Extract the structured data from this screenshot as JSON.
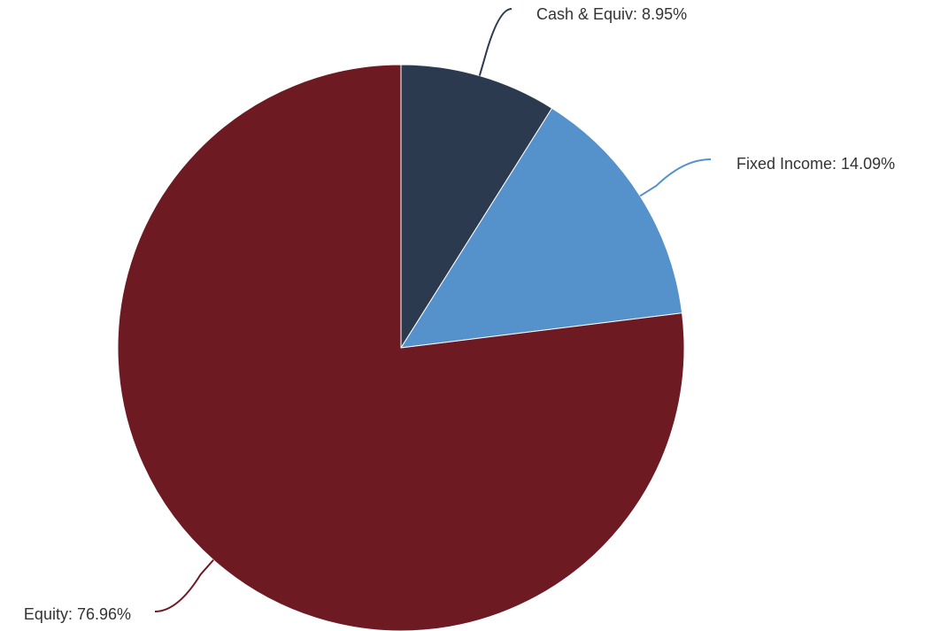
{
  "chart_data": {
    "type": "pie",
    "title": "",
    "slices": [
      {
        "label": "Cash & Equiv",
        "value": 8.95,
        "display": "Cash & Equiv: 8.95%",
        "color": "#2b3a4e"
      },
      {
        "label": "Fixed Income",
        "value": 14.09,
        "display": "Fixed Income: 14.09%",
        "color": "#5591ca"
      },
      {
        "label": "Equity",
        "value": 76.96,
        "display": "Equity: 76.96%",
        "color": "#6d1a22"
      }
    ],
    "start_angle_deg": 0,
    "direction": "clockwise",
    "legend": "none"
  }
}
